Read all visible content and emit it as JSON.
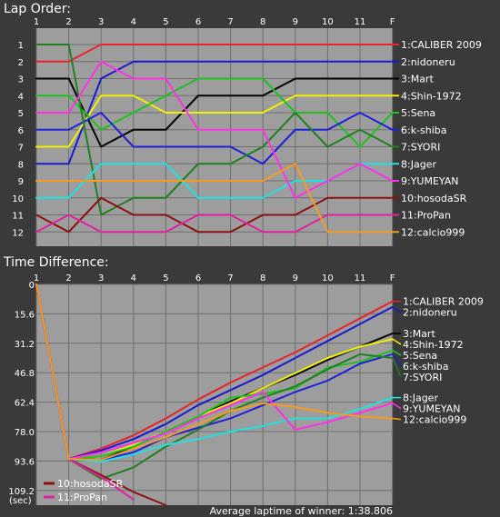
{
  "chart_data": [
    {
      "type": "line",
      "title": "Lap Order:",
      "x_ticks": [
        "1",
        "2",
        "3",
        "4",
        "5",
        "6",
        "7",
        "8",
        "9",
        "10",
        "11",
        "F"
      ],
      "y_ticks": [
        "1",
        "2",
        "3",
        "4",
        "5",
        "6",
        "7",
        "8",
        "9",
        "10",
        "11",
        "12"
      ],
      "y_reversed": true,
      "grid": true,
      "series": [
        {
          "name": "1:CALIBER 2009",
          "color": "#e8232a",
          "values": [
            2,
            2,
            1,
            1,
            1,
            1,
            1,
            1,
            1,
            1,
            1,
            1
          ]
        },
        {
          "name": "2:nidoneru",
          "color": "#1a1ad0",
          "values": [
            8,
            8,
            3,
            2,
            2,
            2,
            2,
            2,
            2,
            2,
            2,
            2
          ]
        },
        {
          "name": "3:Mart",
          "color": "#000000",
          "values": [
            3,
            3,
            7,
            6,
            6,
            4,
            4,
            4,
            3,
            3,
            3,
            3
          ]
        },
        {
          "name": "4:Shin-1972",
          "color": "#f0f000",
          "values": [
            7,
            7,
            4,
            4,
            5,
            5,
            5,
            5,
            4,
            4,
            4,
            4
          ]
        },
        {
          "name": "5:Sena",
          "color": "#20c020",
          "values": [
            4,
            4,
            6,
            5,
            4,
            3,
            3,
            3,
            5,
            5,
            7,
            5
          ]
        },
        {
          "name": "6:k-shiba",
          "color": "#2020d8",
          "values": [
            6,
            6,
            5,
            7,
            7,
            7,
            7,
            8,
            6,
            6,
            5,
            6
          ]
        },
        {
          "name": "7:SYORI",
          "color": "#208020",
          "values": [
            1,
            1,
            11,
            10,
            10,
            8,
            8,
            7,
            5,
            7,
            6,
            7
          ]
        },
        {
          "name": "8:Jager",
          "color": "#20e0e0",
          "values": [
            10,
            10,
            8,
            8,
            8,
            10,
            10,
            10,
            9,
            9,
            8,
            8
          ]
        },
        {
          "name": "9:YUMEYAN",
          "color": "#ff30e8",
          "values": [
            5,
            5,
            2,
            3,
            3,
            6,
            6,
            6,
            10,
            9,
            8,
            9
          ]
        },
        {
          "name": "10:hosodaSR",
          "color": "#8b1010",
          "values": [
            11,
            12,
            10,
            11,
            11,
            12,
            12,
            11,
            11,
            10,
            10,
            10
          ]
        },
        {
          "name": "11:ProPan",
          "color": "#e020a0",
          "values": [
            12,
            11,
            12,
            12,
            12,
            11,
            11,
            12,
            12,
            11,
            11,
            11
          ]
        },
        {
          "name": "12:calcio999",
          "color": "#f59a20",
          "values": [
            9,
            9,
            9,
            9,
            9,
            9,
            9,
            9,
            8,
            12,
            12,
            12
          ]
        }
      ]
    },
    {
      "type": "line",
      "title": "Time Difference:",
      "x_ticks": [
        "1",
        "2",
        "3",
        "4",
        "5",
        "6",
        "7",
        "8",
        "9",
        "10",
        "11",
        "F"
      ],
      "y_ticks": [
        "0",
        "15.6",
        "31.2",
        "46.8",
        "62.4",
        "78.0",
        "93.6",
        "109.2"
      ],
      "y_unit": "(sec)",
      "y_reversed": true,
      "ylim": [
        0,
        117
      ],
      "grid": true,
      "footer": "Average laptime of winner: 1:38.806",
      "series": [
        {
          "name": "1:CALIBER 2009",
          "color": "#e8232a",
          "values": [
            0,
            92.5,
            87,
            80,
            71,
            61,
            52,
            44,
            36,
            27,
            18,
            9
          ]
        },
        {
          "name": "2:nidoneru",
          "color": "#1a1ad0",
          "values": [
            0,
            92.5,
            88,
            82,
            74,
            64,
            56,
            48,
            39,
            30,
            21,
            12
          ]
        },
        {
          "name": "3:Mart",
          "color": "#000000",
          "values": [
            0,
            92.5,
            93,
            86,
            78,
            70,
            62,
            55,
            48,
            40,
            33,
            26
          ]
        },
        {
          "name": "4:Shin-1972",
          "color": "#f0f000",
          "values": [
            0,
            92.5,
            91,
            85,
            78,
            70,
            63,
            55,
            47,
            39,
            33,
            29
          ]
        },
        {
          "name": "5:Sena",
          "color": "#20c020",
          "values": [
            0,
            92.5,
            91,
            86,
            78,
            70,
            60,
            58,
            55,
            44,
            41,
            35
          ]
        },
        {
          "name": "6:k-shiba",
          "color": "#2020d8",
          "values": [
            0,
            92.5,
            93,
            89,
            81,
            76,
            71,
            64,
            57,
            51,
            42,
            37
          ]
        },
        {
          "name": "7:SYORI",
          "color": "#208020",
          "values": [
            0,
            92.5,
            103,
            97,
            86,
            77,
            67,
            60,
            54,
            45,
            37,
            39
          ]
        },
        {
          "name": "8:Jager",
          "color": "#20e0e0",
          "values": [
            0,
            92.5,
            94,
            90,
            85,
            82,
            78,
            75,
            71,
            71,
            66,
            60
          ]
        },
        {
          "name": "9:YUMEYAN",
          "color": "#ff30e8",
          "values": [
            0,
            92.5,
            89,
            84,
            79,
            71,
            64,
            57,
            77,
            73,
            68,
            63
          ]
        },
        {
          "name": "10:hosodaSR",
          "color": "#8b1010",
          "values": [
            0,
            92.5,
            101,
            110,
            117,
            null,
            null,
            null,
            null,
            null,
            null,
            null
          ]
        },
        {
          "name": "11:ProPan",
          "color": "#e020a0",
          "values": [
            0,
            92.5,
            102,
            114,
            null,
            null,
            null,
            null,
            null,
            null,
            null,
            null
          ]
        },
        {
          "name": "12:calcio999",
          "color": "#f59a20",
          "values": [
            0,
            92.5,
            93,
            87,
            81,
            74,
            67,
            63,
            65,
            68,
            70,
            71
          ]
        }
      ]
    }
  ]
}
